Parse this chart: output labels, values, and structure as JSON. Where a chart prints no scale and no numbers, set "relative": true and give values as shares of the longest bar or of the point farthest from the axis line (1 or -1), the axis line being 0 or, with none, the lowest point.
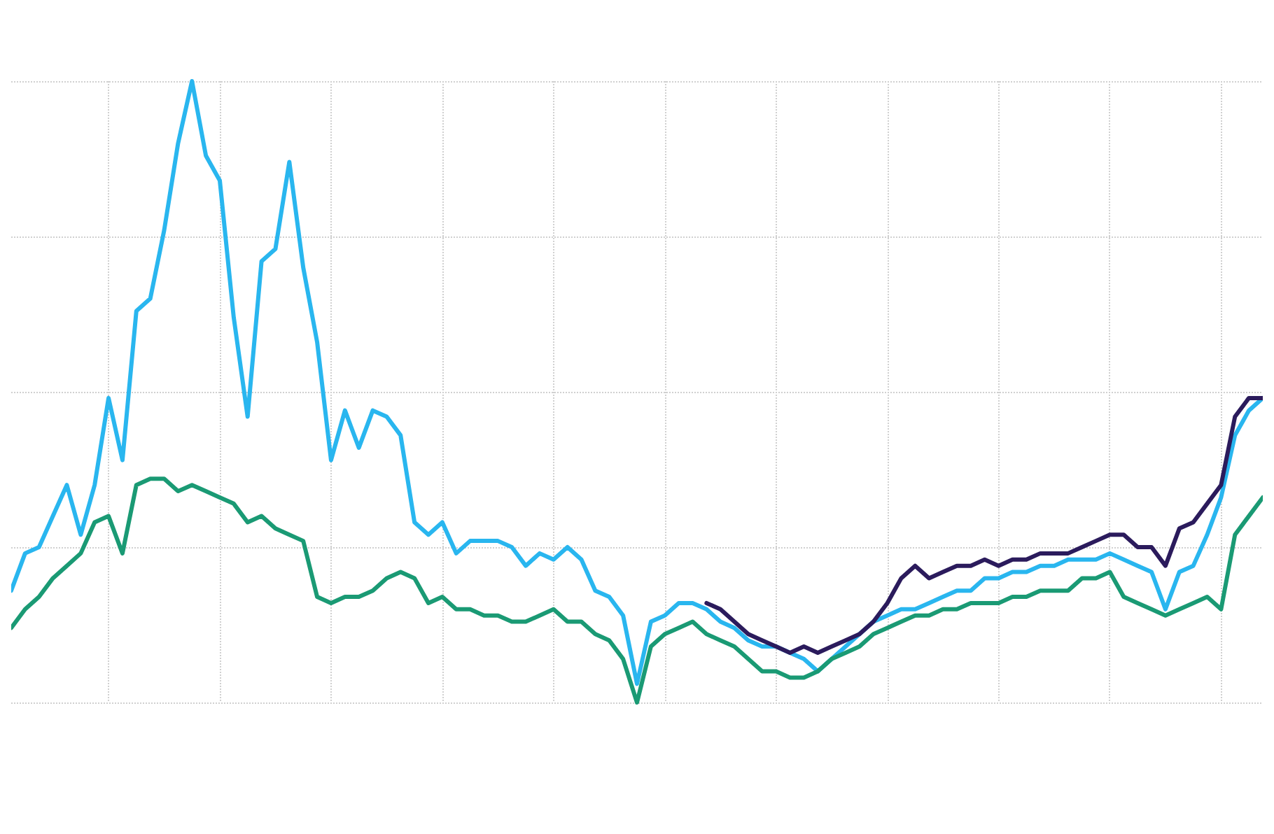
{
  "chart_data": {
    "type": "line",
    "relative": true,
    "grid": true,
    "marker": "none",
    "line_style": "solid",
    "categories": [
      null,
      null,
      null,
      null,
      null,
      null,
      null,
      null,
      null,
      null,
      null,
      null,
      null,
      null,
      null,
      null,
      null,
      null,
      null,
      null,
      null,
      null,
      null,
      null,
      null,
      null,
      null,
      null,
      null,
      null,
      null,
      null,
      null,
      null,
      null,
      null,
      null,
      null,
      null,
      null,
      null,
      null,
      null,
      null,
      null,
      null,
      null,
      null,
      null,
      null,
      null,
      null,
      null,
      null,
      null,
      null,
      null,
      null,
      null,
      null,
      null,
      null,
      null,
      null,
      null,
      null,
      null,
      null,
      null,
      null,
      null,
      null,
      null,
      null,
      null,
      null,
      null,
      null,
      null,
      null,
      null,
      null,
      null,
      null,
      null,
      null,
      null,
      null,
      null,
      null,
      null
    ],
    "series": [
      {
        "color": "#29b6ef",
        "values": [
          0.18,
          0.24,
          0.25,
          0.3,
          0.35,
          0.27,
          0.35,
          0.49,
          0.39,
          0.63,
          0.65,
          0.76,
          0.9,
          1.0,
          0.88,
          0.84,
          0.62,
          0.46,
          0.71,
          0.73,
          0.87,
          0.7,
          0.58,
          0.39,
          0.47,
          0.41,
          0.47,
          0.46,
          0.43,
          0.29,
          0.27,
          0.29,
          0.24,
          0.26,
          0.26,
          0.26,
          0.25,
          0.22,
          0.24,
          0.23,
          0.25,
          0.23,
          0.18,
          0.17,
          0.14,
          0.03,
          0.13,
          0.14,
          0.16,
          0.16,
          0.15,
          0.13,
          0.12,
          0.1,
          0.09,
          0.09,
          0.08,
          0.07,
          0.05,
          0.07,
          0.09,
          0.11,
          0.13,
          0.14,
          0.15,
          0.15,
          0.16,
          0.17,
          0.18,
          0.18,
          0.2,
          0.2,
          0.21,
          0.21,
          0.22,
          0.22,
          0.23,
          0.23,
          0.23,
          0.24,
          0.23,
          0.22,
          0.21,
          0.15,
          0.21,
          0.22,
          0.27,
          0.33,
          0.43,
          0.47,
          0.49
        ]
      },
      {
        "color": "#1a9a74",
        "values": [
          0.12,
          0.15,
          0.17,
          0.2,
          0.22,
          0.24,
          0.29,
          0.3,
          0.24,
          0.35,
          0.36,
          0.36,
          0.34,
          0.35,
          0.34,
          0.33,
          0.32,
          0.29,
          0.3,
          0.28,
          0.27,
          0.26,
          0.17,
          0.16,
          0.17,
          0.17,
          0.18,
          0.2,
          0.21,
          0.2,
          0.16,
          0.17,
          0.15,
          0.15,
          0.14,
          0.14,
          0.13,
          0.13,
          0.14,
          0.15,
          0.13,
          0.13,
          0.11,
          0.1,
          0.07,
          0,
          0.09,
          0.11,
          0.12,
          0.13,
          0.11,
          0.1,
          0.09,
          0.07,
          0.05,
          0.05,
          0.04,
          0.04,
          0.05,
          0.07,
          0.08,
          0.09,
          0.11,
          0.12,
          0.13,
          0.14,
          0.14,
          0.15,
          0.15,
          0.16,
          0.16,
          0.16,
          0.17,
          0.17,
          0.18,
          0.18,
          0.18,
          0.2,
          0.2,
          0.21,
          0.17,
          0.16,
          0.15,
          0.14,
          0.15,
          0.16,
          0.17,
          0.15,
          0.27,
          0.3,
          0.33
        ]
      },
      {
        "color": "#2b1b5c",
        "values": [
          null,
          null,
          null,
          null,
          null,
          null,
          null,
          null,
          null,
          null,
          null,
          null,
          null,
          null,
          null,
          null,
          null,
          null,
          null,
          null,
          null,
          null,
          null,
          null,
          null,
          null,
          null,
          null,
          null,
          null,
          null,
          null,
          null,
          null,
          null,
          null,
          null,
          null,
          null,
          null,
          null,
          null,
          null,
          null,
          null,
          null,
          null,
          null,
          null,
          null,
          0.16,
          0.15,
          0.13,
          0.11,
          0.1,
          0.09,
          0.08,
          0.09,
          0.08,
          0.09,
          0.1,
          0.11,
          0.13,
          0.16,
          0.2,
          0.22,
          0.2,
          0.21,
          0.22,
          0.22,
          0.23,
          0.22,
          0.23,
          0.23,
          0.24,
          0.24,
          0.24,
          0.25,
          0.26,
          0.27,
          0.27,
          0.25,
          0.25,
          0.22,
          0.28,
          0.29,
          0.32,
          0.35,
          0.46,
          0.49,
          0.49
        ]
      }
    ]
  }
}
